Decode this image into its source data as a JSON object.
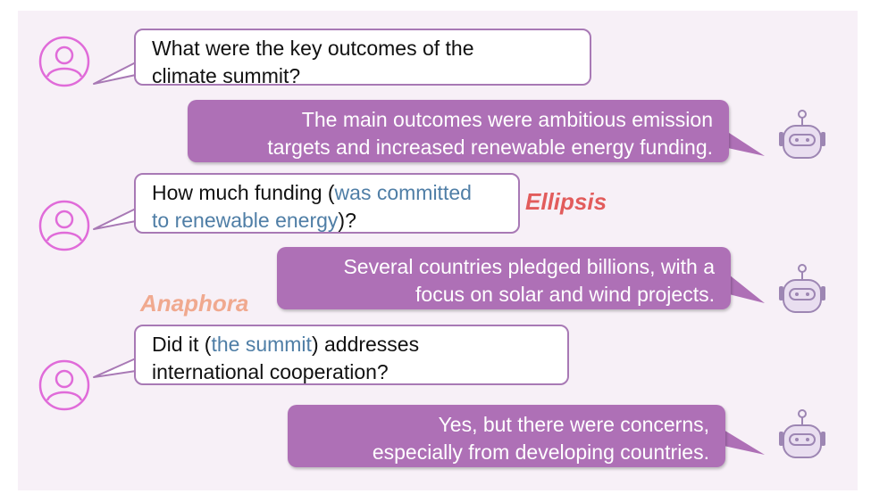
{
  "colors": {
    "panel": "#f7f0f7",
    "user_bubble_border": "#a879b5",
    "bot_bubble": "#ae70b6",
    "avatar": "#e06bd9",
    "robot": "#9d86b3",
    "highlight_text": "#4f7ea6",
    "ellipsis_label": "#e25c5c",
    "anaphora_label": "#f0a98f"
  },
  "icons": {
    "user": "user-avatar-icon",
    "bot": "robot-icon"
  },
  "turns": [
    {
      "speaker": "user",
      "line1": "What were the key outcomes of the",
      "line2": "climate summit?"
    },
    {
      "speaker": "bot",
      "line1": "The main outcomes were ambitious emission",
      "line2": "targets and increased renewable energy funding."
    },
    {
      "speaker": "user",
      "pre": "How much funding (",
      "hl1": "was committed",
      "hl2": "to renewable energy",
      "post": ")?"
    },
    {
      "speaker": "bot",
      "line1": "Several countries pledged billions, with a",
      "line2": "focus on solar and wind projects."
    },
    {
      "speaker": "user",
      "pre": "Did it (",
      "hl": "the summit",
      "post": ") addresses",
      "line2": "international cooperation?"
    },
    {
      "speaker": "bot",
      "line1": "Yes, but there were concerns,",
      "line2": "especially from developing countries."
    }
  ],
  "labels": {
    "ellipsis": "Ellipsis",
    "anaphora": "Anaphora"
  }
}
